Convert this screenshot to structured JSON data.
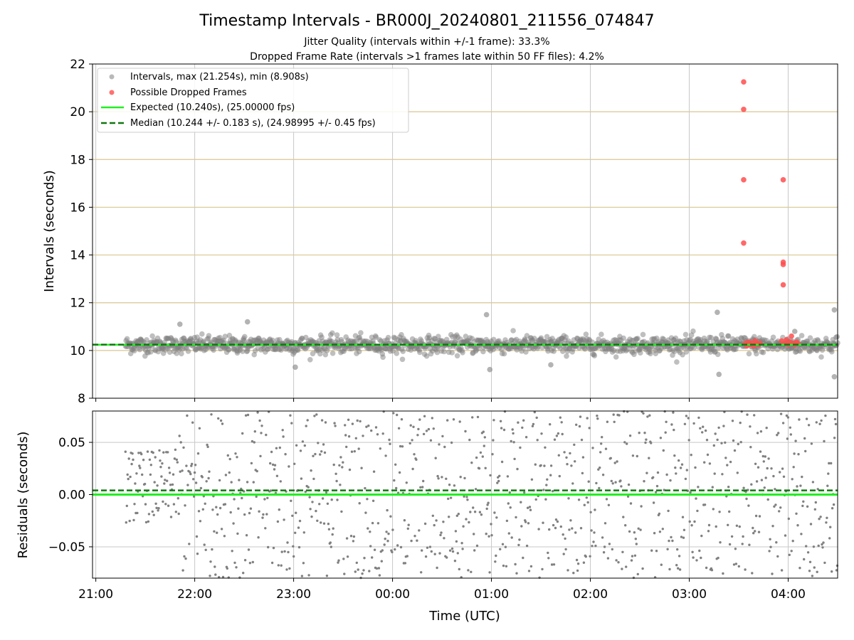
{
  "title": "Timestamp Intervals - BR000J_20240801_211556_074847",
  "subtitle1": "Jitter Quality (intervals within +/-1 frame): 33.3%",
  "subtitle2": "Dropped Frame Rate (intervals >1 frames late within 50 FF files): 4.2%",
  "colors": {
    "intervals": "#808080",
    "dropped": "#ff4d4d",
    "expected": "#22ee22",
    "median": "#117711",
    "hgrid_top": "#d8c690",
    "grid": "#c8c8c8"
  },
  "chart_data": [
    {
      "type": "scatter",
      "ylabel": "Intervals (seconds)",
      "ylim": [
        8,
        22
      ],
      "yticks": [
        "8",
        "10",
        "12",
        "14",
        "16",
        "18",
        "20",
        "22"
      ],
      "xlim": [
        "20:58",
        "04:30"
      ],
      "grid": true,
      "legend_position": "top-left",
      "legend": [
        "Intervals, max (21.254s), min (8.908s)",
        "Possible Dropped Frames",
        "Expected (10.240s), (25.00000 fps)",
        "Median (10.244 +/- 0.183 s), (24.98995 +/- 0.45 fps)"
      ],
      "series": [
        {
          "name": "Intervals, max (21.254s), min (8.908s)",
          "x_range": [
            "21:18",
            "04:30"
          ],
          "center": 10.24,
          "spread": 0.18,
          "outliers": [
            {
              "x": "21:51",
              "y": 11.1
            },
            {
              "x": "22:32",
              "y": 11.2
            },
            {
              "x": "23:01",
              "y": 9.3
            },
            {
              "x": "00:57",
              "y": 11.5
            },
            {
              "x": "00:59",
              "y": 9.2
            },
            {
              "x": "01:36",
              "y": 9.4
            },
            {
              "x": "03:17",
              "y": 11.6
            },
            {
              "x": "03:18",
              "y": 9.0
            },
            {
              "x": "04:28",
              "y": 11.7
            },
            {
              "x": "04:28",
              "y": 8.9
            },
            {
              "x": "04:04",
              "y": 10.8
            }
          ]
        },
        {
          "name": "Possible Dropped Frames",
          "points": [
            {
              "x": "03:33",
              "y": 21.25
            },
            {
              "x": "03:33",
              "y": 20.1
            },
            {
              "x": "03:33",
              "y": 17.15
            },
            {
              "x": "03:33",
              "y": 14.5
            },
            {
              "x": "03:57",
              "y": 17.15
            },
            {
              "x": "03:57",
              "y": 13.7
            },
            {
              "x": "03:57",
              "y": 13.6
            },
            {
              "x": "03:57",
              "y": 12.75
            },
            {
              "x": "03:34",
              "y": 10.3
            },
            {
              "x": "03:35",
              "y": 10.2
            },
            {
              "x": "03:36",
              "y": 10.35
            },
            {
              "x": "03:37",
              "y": 10.25
            },
            {
              "x": "03:38",
              "y": 10.3
            },
            {
              "x": "03:39",
              "y": 10.2
            },
            {
              "x": "03:40",
              "y": 10.4
            },
            {
              "x": "03:41",
              "y": 10.3
            },
            {
              "x": "03:42",
              "y": 10.25
            },
            {
              "x": "03:43",
              "y": 10.3
            },
            {
              "x": "03:56",
              "y": 10.4
            },
            {
              "x": "03:58",
              "y": 10.3
            },
            {
              "x": "03:59",
              "y": 10.45
            },
            {
              "x": "04:00",
              "y": 10.25
            },
            {
              "x": "04:01",
              "y": 10.35
            },
            {
              "x": "04:02",
              "y": 10.6
            },
            {
              "x": "04:03",
              "y": 10.3
            },
            {
              "x": "04:04",
              "y": 10.25
            },
            {
              "x": "04:05",
              "y": 10.35
            },
            {
              "x": "04:06",
              "y": 10.3
            }
          ]
        },
        {
          "name": "Expected (10.240s), (25.00000 fps)",
          "type": "hline",
          "y": 10.24,
          "style": "solid"
        },
        {
          "name": "Median (10.244 +/- 0.183 s), (24.98995 +/- 0.45 fps)",
          "type": "hline",
          "y": 10.244,
          "style": "dashed"
        }
      ]
    },
    {
      "type": "scatter",
      "ylabel": "Residuals (seconds)",
      "xlabel": "Time (UTC)",
      "ylim": [
        -0.08,
        0.08
      ],
      "yticks": [
        "−0.05",
        "0.00",
        "0.05"
      ],
      "ytick_values": [
        -0.05,
        0,
        0.05
      ],
      "xticks": [
        "21:00",
        "22:00",
        "23:00",
        "00:00",
        "01:00",
        "02:00",
        "03:00",
        "04:00"
      ],
      "grid": true,
      "series": [
        {
          "name": "",
          "x_range": [
            "21:18",
            "04:30"
          ],
          "center": 0.0,
          "spread": 0.08
        },
        {
          "name": "",
          "type": "hline",
          "y": 0.0,
          "style": "solid"
        },
        {
          "name": "",
          "type": "hline",
          "y": 0.004,
          "style": "dashed"
        }
      ]
    }
  ]
}
